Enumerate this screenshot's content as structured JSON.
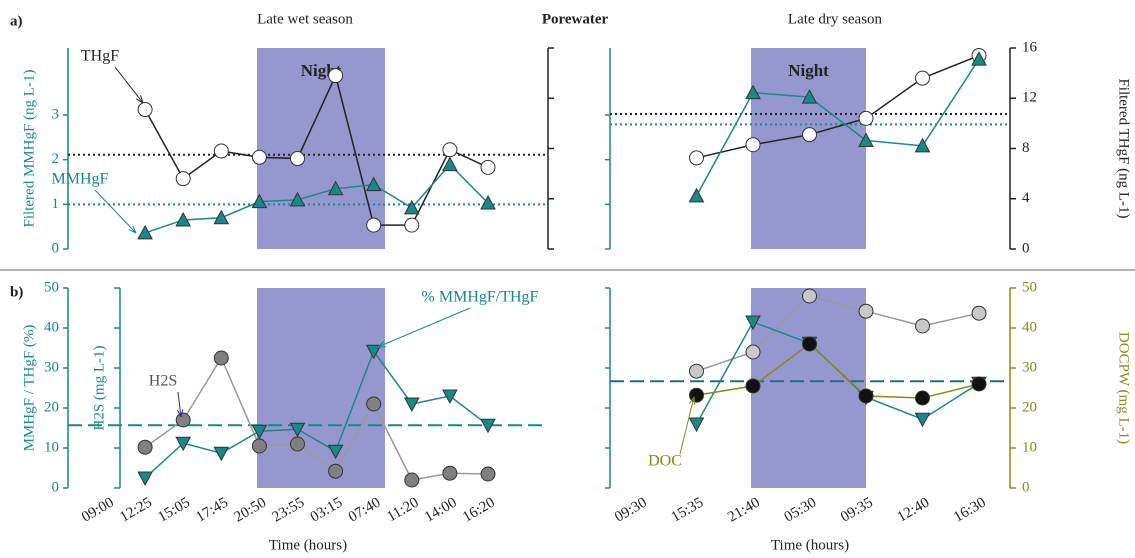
{
  "labels": {
    "panel_a": "a)",
    "panel_b": "b)",
    "heading": "Porewater"
  },
  "chart_data": [
    {
      "type": "line",
      "title": "Late wet season",
      "band_label": "Night",
      "ylabel": "Filtered MMHgF (ng L-1)",
      "categories": [
        "09:00",
        "12:25",
        "15:05",
        "17:45",
        "20:50",
        "23:55",
        "03:15",
        "07:40",
        "11:20",
        "14:00",
        "16:20"
      ],
      "ylim": [
        0,
        4.5
      ],
      "yticks": [
        0,
        1,
        2,
        3
      ],
      "y2lim": [
        0,
        16
      ],
      "y2ticks": [
        0,
        4,
        8,
        12,
        16
      ],
      "series": [
        {
          "name": "THgF",
          "axis": "y2",
          "color": "#222222",
          "fill": "#ffffff",
          "marker": "circle",
          "values": [
            null,
            11.1,
            5.6,
            7.8,
            7.3,
            7.2,
            13.8,
            1.9,
            1.9,
            7.9,
            6.5
          ]
        },
        {
          "name": "MMHgF",
          "color": "#17898a",
          "fill": "#17898a",
          "marker": "triangle-up",
          "values": [
            null,
            0.36,
            0.65,
            0.7,
            1.06,
            1.1,
            1.35,
            1.44,
            0.92,
            1.89,
            1.03
          ]
        }
      ],
      "hlines": [
        {
          "value": 7.5,
          "axis": "y2",
          "color": "#222222"
        },
        {
          "value": 1.0,
          "color": "#17898a"
        }
      ],
      "annotations": [
        "THgF",
        "MMHgF"
      ]
    },
    {
      "type": "line",
      "title": "Late dry season",
      "band_label": "Night",
      "y2label": "Filtered THgF (ng L-1)",
      "categories": [
        "09:30",
        "15:35",
        "21:40",
        "05:30",
        "09:35",
        "12:40",
        "16:30"
      ],
      "ylim": [
        0,
        4.5
      ],
      "yticks": [
        0,
        1,
        2,
        3
      ],
      "y2lim": [
        0,
        16
      ],
      "y2ticks": [
        0,
        4,
        8,
        12,
        16
      ],
      "series": [
        {
          "name": "THgF",
          "axis": "y2",
          "color": "#222222",
          "fill": "#ffffff",
          "marker": "circle",
          "values": [
            null,
            7.25,
            8.3,
            9.1,
            10.4,
            13.6,
            15.4
          ]
        },
        {
          "name": "MMHgF",
          "color": "#17898a",
          "fill": "#17898a",
          "marker": "triangle-up",
          "values": [
            null,
            1.19,
            3.5,
            3.4,
            2.43,
            2.31,
            4.25
          ]
        }
      ],
      "hlines": [
        {
          "value": 10.75,
          "axis": "y2",
          "color": "#222222"
        },
        {
          "value": 2.79,
          "color": "#17898a"
        }
      ],
      "annotations": []
    },
    {
      "type": "line",
      "ylabel": "MMHgF / THgF (%)",
      "y2label": "H2S (mg L-1)",
      "xlabel": "Time (hours)",
      "categories": [
        "09:00",
        "12:25",
        "15:05",
        "17:45",
        "20:50",
        "23:55",
        "03:15",
        "07:40",
        "11:20",
        "14:00",
        "16:20"
      ],
      "ylim": [
        0,
        50
      ],
      "yticks": [
        0,
        10,
        20,
        30,
        40,
        50
      ],
      "y2lim": [
        0,
        50
      ],
      "y2ticks": [
        0,
        10,
        20,
        30,
        40,
        50
      ],
      "series": [
        {
          "name": "H2S",
          "axis": "y2",
          "color": "#999999",
          "fill": "#808080",
          "marker": "circle",
          "values": [
            null,
            10.2,
            17,
            32.5,
            10.5,
            11,
            4.2,
            21,
            2,
            3.7,
            3.5
          ]
        },
        {
          "name": "% MMHgF/THgF",
          "color": "#17898a",
          "fill": "#17898a",
          "marker": "triangle-down",
          "values": [
            null,
            2.5,
            11.2,
            8.7,
            14.2,
            14.7,
            9.2,
            34.2,
            21,
            23,
            15.7
          ]
        }
      ],
      "hlines": [
        {
          "value": 15.7,
          "color": "#17898a",
          "dash": true
        }
      ],
      "annotations": [
        "H2S",
        "% MMHgF/THgF"
      ]
    },
    {
      "type": "line",
      "y2label": "DOCPW (mg L-1)",
      "xlabel": "Time (hours)",
      "categories": [
        "09:30",
        "15:35",
        "21:40",
        "05:30",
        "09:35",
        "12:40",
        "16:30"
      ],
      "ylim": [
        0,
        50
      ],
      "yticks": [
        0,
        10,
        20,
        30,
        40,
        50
      ],
      "y2lim": [
        0,
        50
      ],
      "y2ticks": [
        0,
        10,
        20,
        30,
        40,
        50
      ],
      "series": [
        {
          "name": "H2S",
          "color": "#999999",
          "fill": "#c8c8c8",
          "marker": "circle",
          "values": [
            null,
            29.2,
            34,
            48,
            44.2,
            40.5,
            43.7
          ]
        },
        {
          "name": "% MMHgF/THgF",
          "color": "#17898a",
          "fill": "#17898a",
          "marker": "triangle-down",
          "values": [
            null,
            16,
            41.5,
            36.2,
            22.7,
            17.2,
            26.2
          ]
        },
        {
          "name": "DOC",
          "axis": "y2",
          "color": "#8a8a1a",
          "fill": "#111111",
          "marker": "circle",
          "values": [
            null,
            23.2,
            25.5,
            36,
            23,
            22.5,
            26
          ]
        }
      ],
      "hlines": [
        {
          "value": 26.7,
          "color": "#1a6e8a",
          "dash": true
        }
      ],
      "annotations": [
        "DOC"
      ]
    }
  ]
}
